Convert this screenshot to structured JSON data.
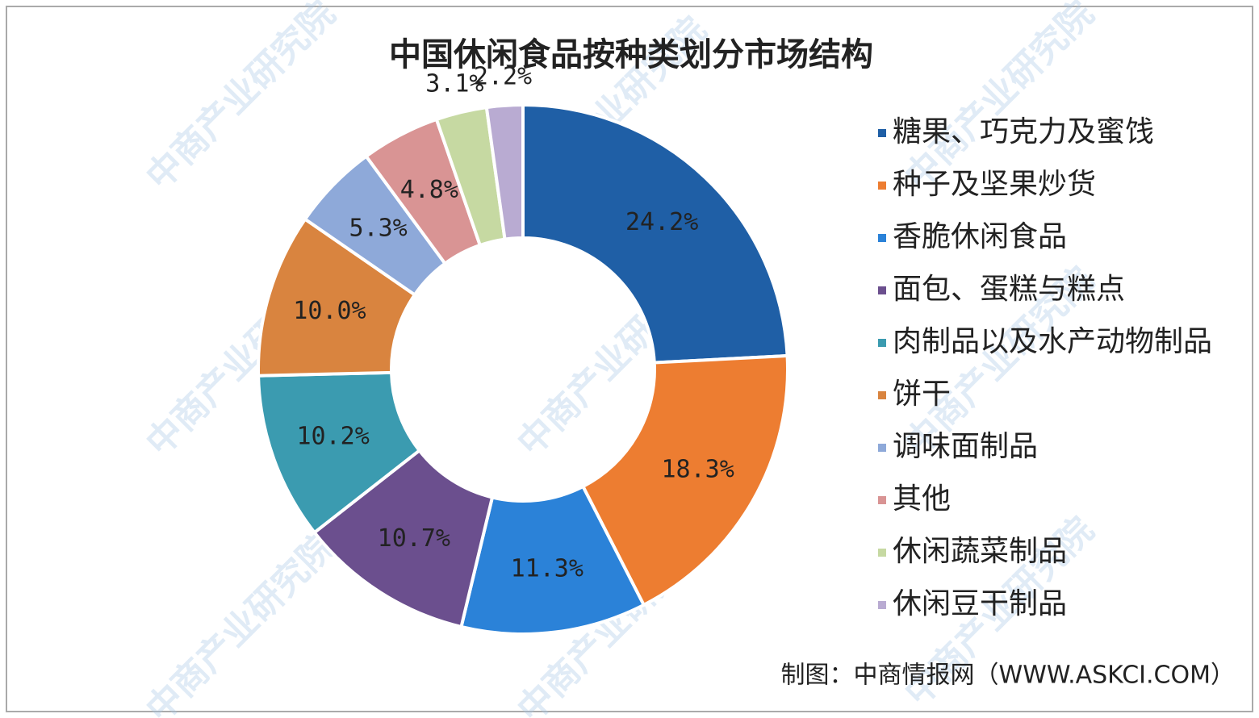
{
  "chart_data": {
    "type": "donut",
    "title": "中国休闲食品按种类划分市场结构",
    "categories": [
      "糖果、巧克力及蜜饯",
      "种子及坚果炒货",
      "香脆休闲食品",
      "面包、蛋糕与糕点",
      "肉制品以及水产动物制品",
      "饼干",
      "调味面制品",
      "其他",
      "休闲蔬菜制品",
      "休闲豆干制品"
    ],
    "values": [
      24.2,
      18.3,
      11.3,
      10.7,
      10.2,
      10.0,
      5.3,
      4.8,
      3.1,
      2.2
    ],
    "value_labels": [
      "24.2%",
      "18.3%",
      "11.3%",
      "10.7%",
      "10.2%",
      "10.0%",
      "5.3%",
      "4.8%",
      "3.1%",
      "2.2%"
    ],
    "colors": [
      "#1f5fa6",
      "#ed7d31",
      "#2b82d8",
      "#6b4f8e",
      "#3b9bb0",
      "#d9843f",
      "#8ea9d9",
      "#d99494",
      "#c6d9a2",
      "#b9abd2"
    ],
    "legend": "right",
    "source": "制图：中商情报网（WWW.ASKCI.COM）",
    "watermark": "中商产业研究院"
  }
}
